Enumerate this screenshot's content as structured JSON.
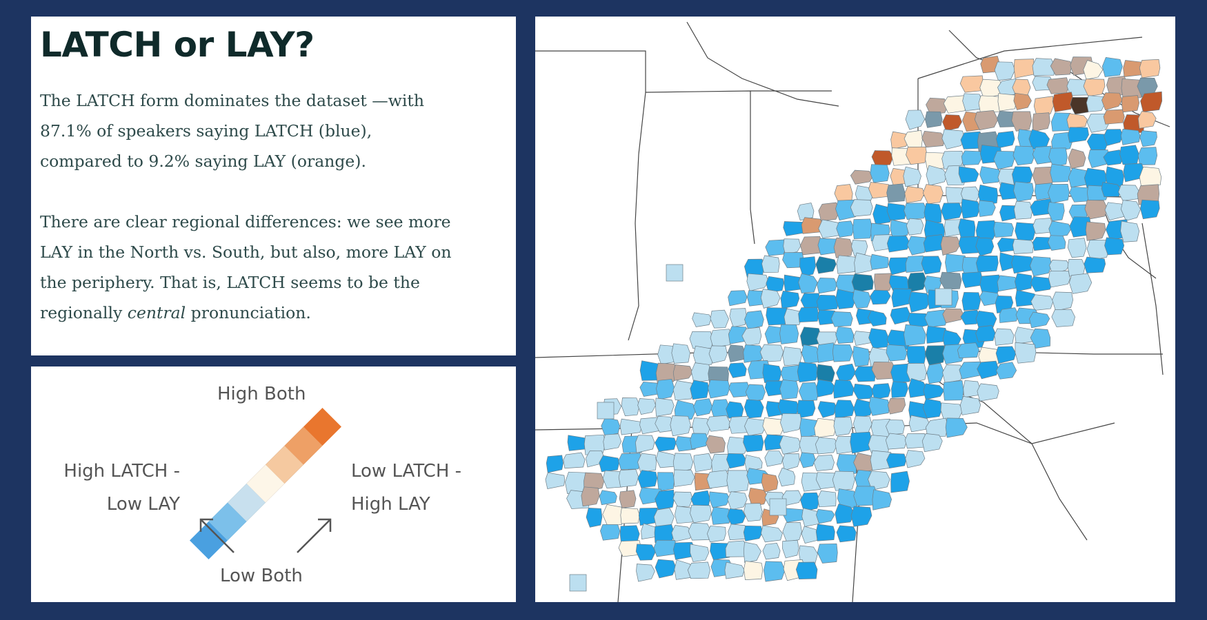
{
  "text_panel": {
    "title": "LATCH or LAY?",
    "p1": "The LATCH form dominates the dataset —with 87.1% of speakers saying LATCH (blue), compared to 9.2% saying LAY (orange).",
    "p2_before": "There are clear regional differences: we see more LAY in the North vs. South, but also, more LAY on the periphery. That is, LATCH seems to be the regionally ",
    "p2_emph": "central",
    "p2_after": " pronunciation."
  },
  "legend": {
    "top_label": "High Both",
    "bottom_label": "Low Both",
    "left_label_line1": "High LATCH -",
    "left_label_line2": "Low LAY",
    "right_label_line1": "Low LATCH -",
    "right_label_line2": "High LAY",
    "grid_colors": [
      [
        "#3a2a20",
        "#7a4a30",
        "#c06026",
        "#e9762e"
      ],
      [
        "#4a6272",
        "#8b7a72",
        "#c38a6a",
        "#eea066"
      ],
      [
        "#3a7fb0",
        "#8eaab8",
        "#cfb7a6",
        "#f5c9a0"
      ],
      [
        "#4aa0e0",
        "#7cc0ea",
        "#c8e0ee",
        "#fdf6e8"
      ]
    ]
  },
  "map": {
    "colors": {
      "latch_high": "#1ea2e8",
      "latch_mid": "#5cbdef",
      "latch_low": "#bcdff0",
      "lay_high": "#c0592a",
      "lay_mid": "#d99a70",
      "lay_low": "#f9c8a0",
      "both_mid": "#bfa89c",
      "both_high": "#4a3528",
      "low_both": "#fdf5e4",
      "gray_blue": "#7a99aa",
      "teal": "#1a7fa8"
    }
  }
}
